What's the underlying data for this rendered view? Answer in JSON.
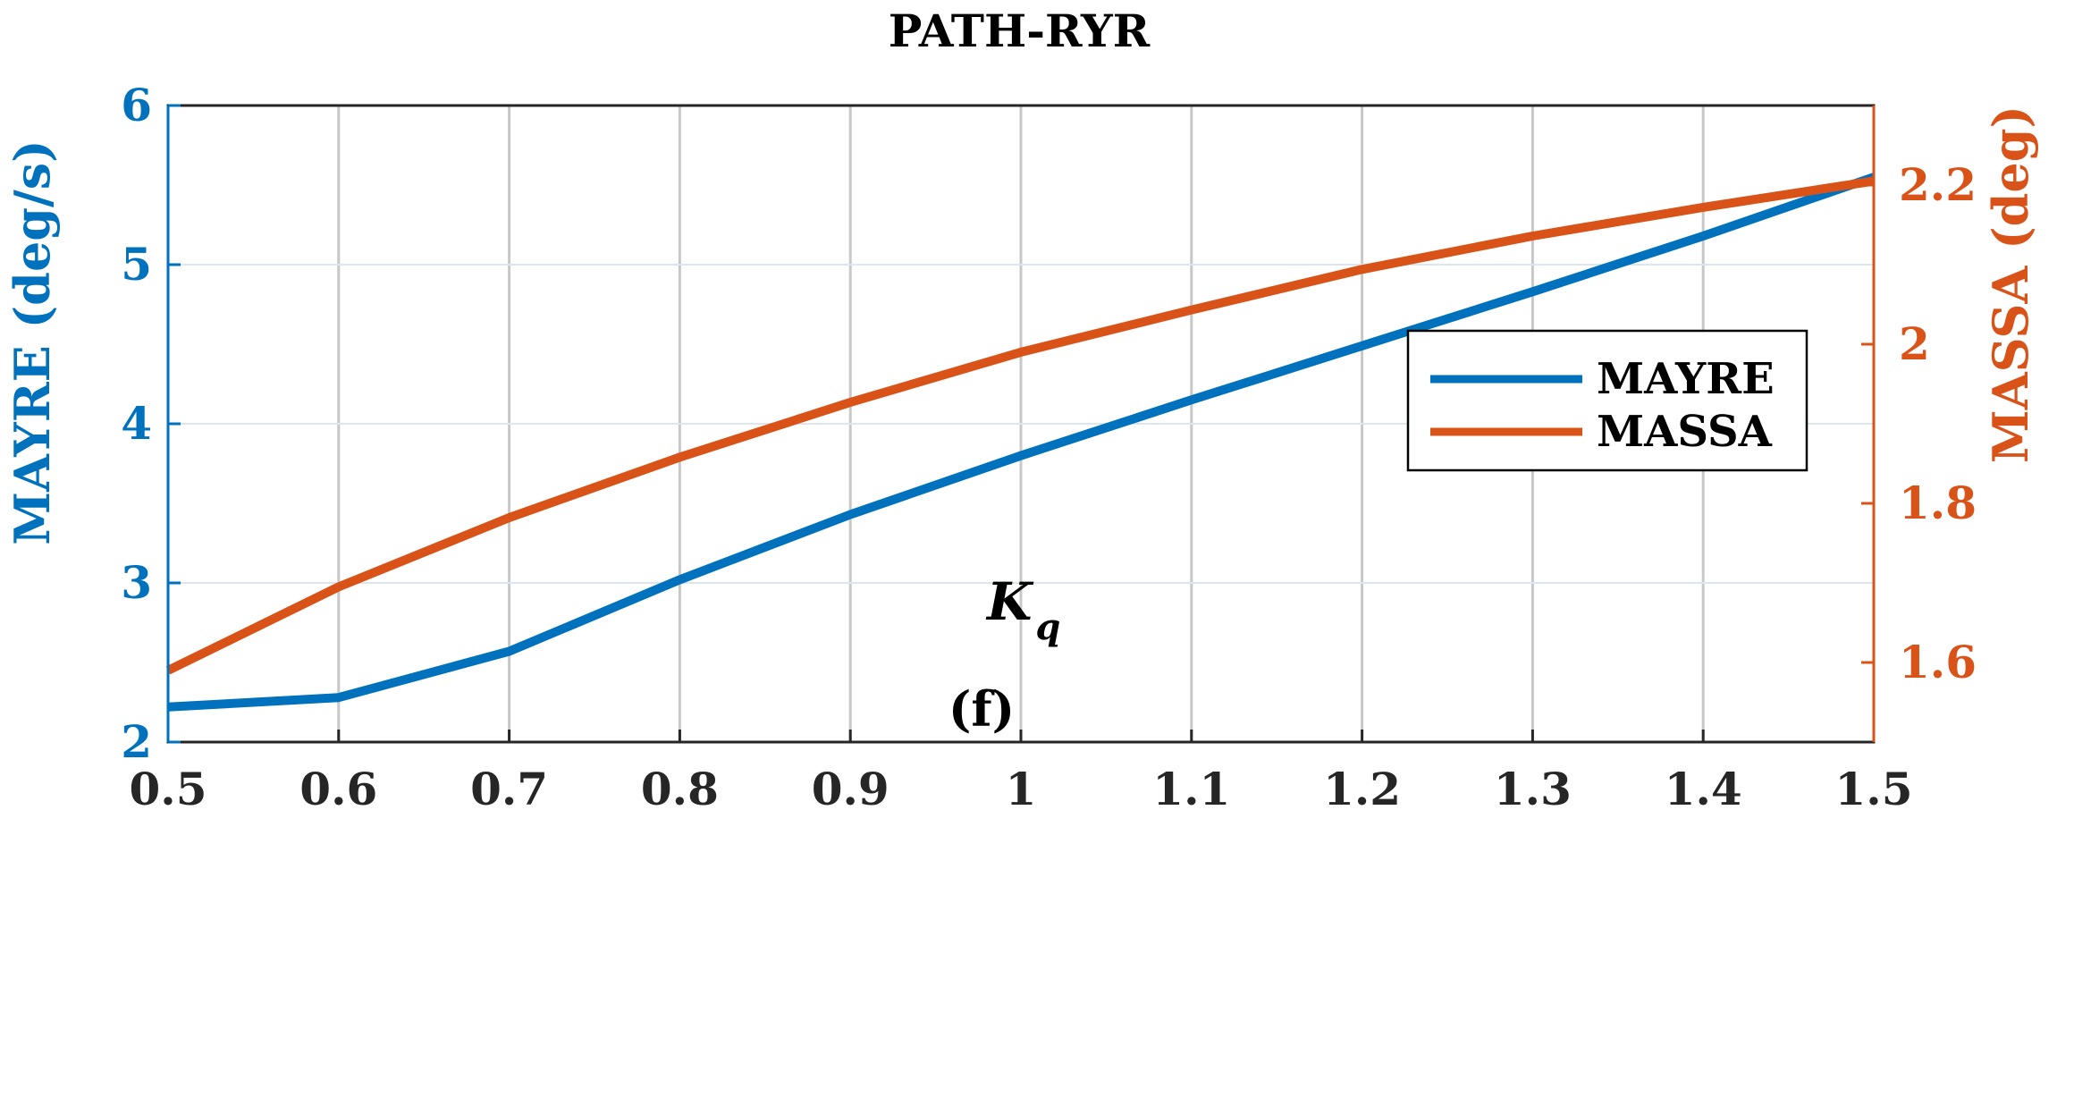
{
  "chart_data": {
    "type": "line",
    "title": "PATH-RYR",
    "xlabel": "K",
    "xlabel_sub": "q",
    "ylabel_left": "MAYRE (deg/s)",
    "ylabel_right": "MASSA (deg)",
    "xlim": [
      0.5,
      1.5
    ],
    "ylim_left": [
      2,
      6
    ],
    "ylim_right": [
      1.5,
      2.3
    ],
    "x_ticks": [
      "0.5",
      "0.6",
      "0.7",
      "0.8",
      "0.9",
      "1",
      "1.1",
      "1.2",
      "1.3",
      "1.4",
      "1.5"
    ],
    "y_ticks_left": [
      "2",
      "3",
      "4",
      "5",
      "6"
    ],
    "y_ticks_right": [
      "1.6",
      "1.8",
      "2",
      "2.2"
    ],
    "grid": true,
    "legend_position": "bottom-right",
    "x": [
      0.5,
      0.6,
      0.7,
      0.8,
      0.9,
      1.0,
      1.1,
      1.2,
      1.3,
      1.4,
      1.5
    ],
    "series": [
      {
        "name": "MAYRE",
        "axis": "left",
        "color": "#0072BD",
        "values": [
          2.22,
          2.28,
          2.57,
          3.02,
          3.43,
          3.8,
          4.15,
          4.49,
          4.83,
          5.18,
          5.55
        ]
      },
      {
        "name": "MASSA",
        "axis": "right",
        "color": "#D95319",
        "values": [
          1.59,
          1.695,
          1.782,
          1.858,
          1.927,
          1.99,
          2.043,
          2.094,
          2.136,
          2.172,
          2.205
        ]
      }
    ]
  },
  "caption": "(f)"
}
